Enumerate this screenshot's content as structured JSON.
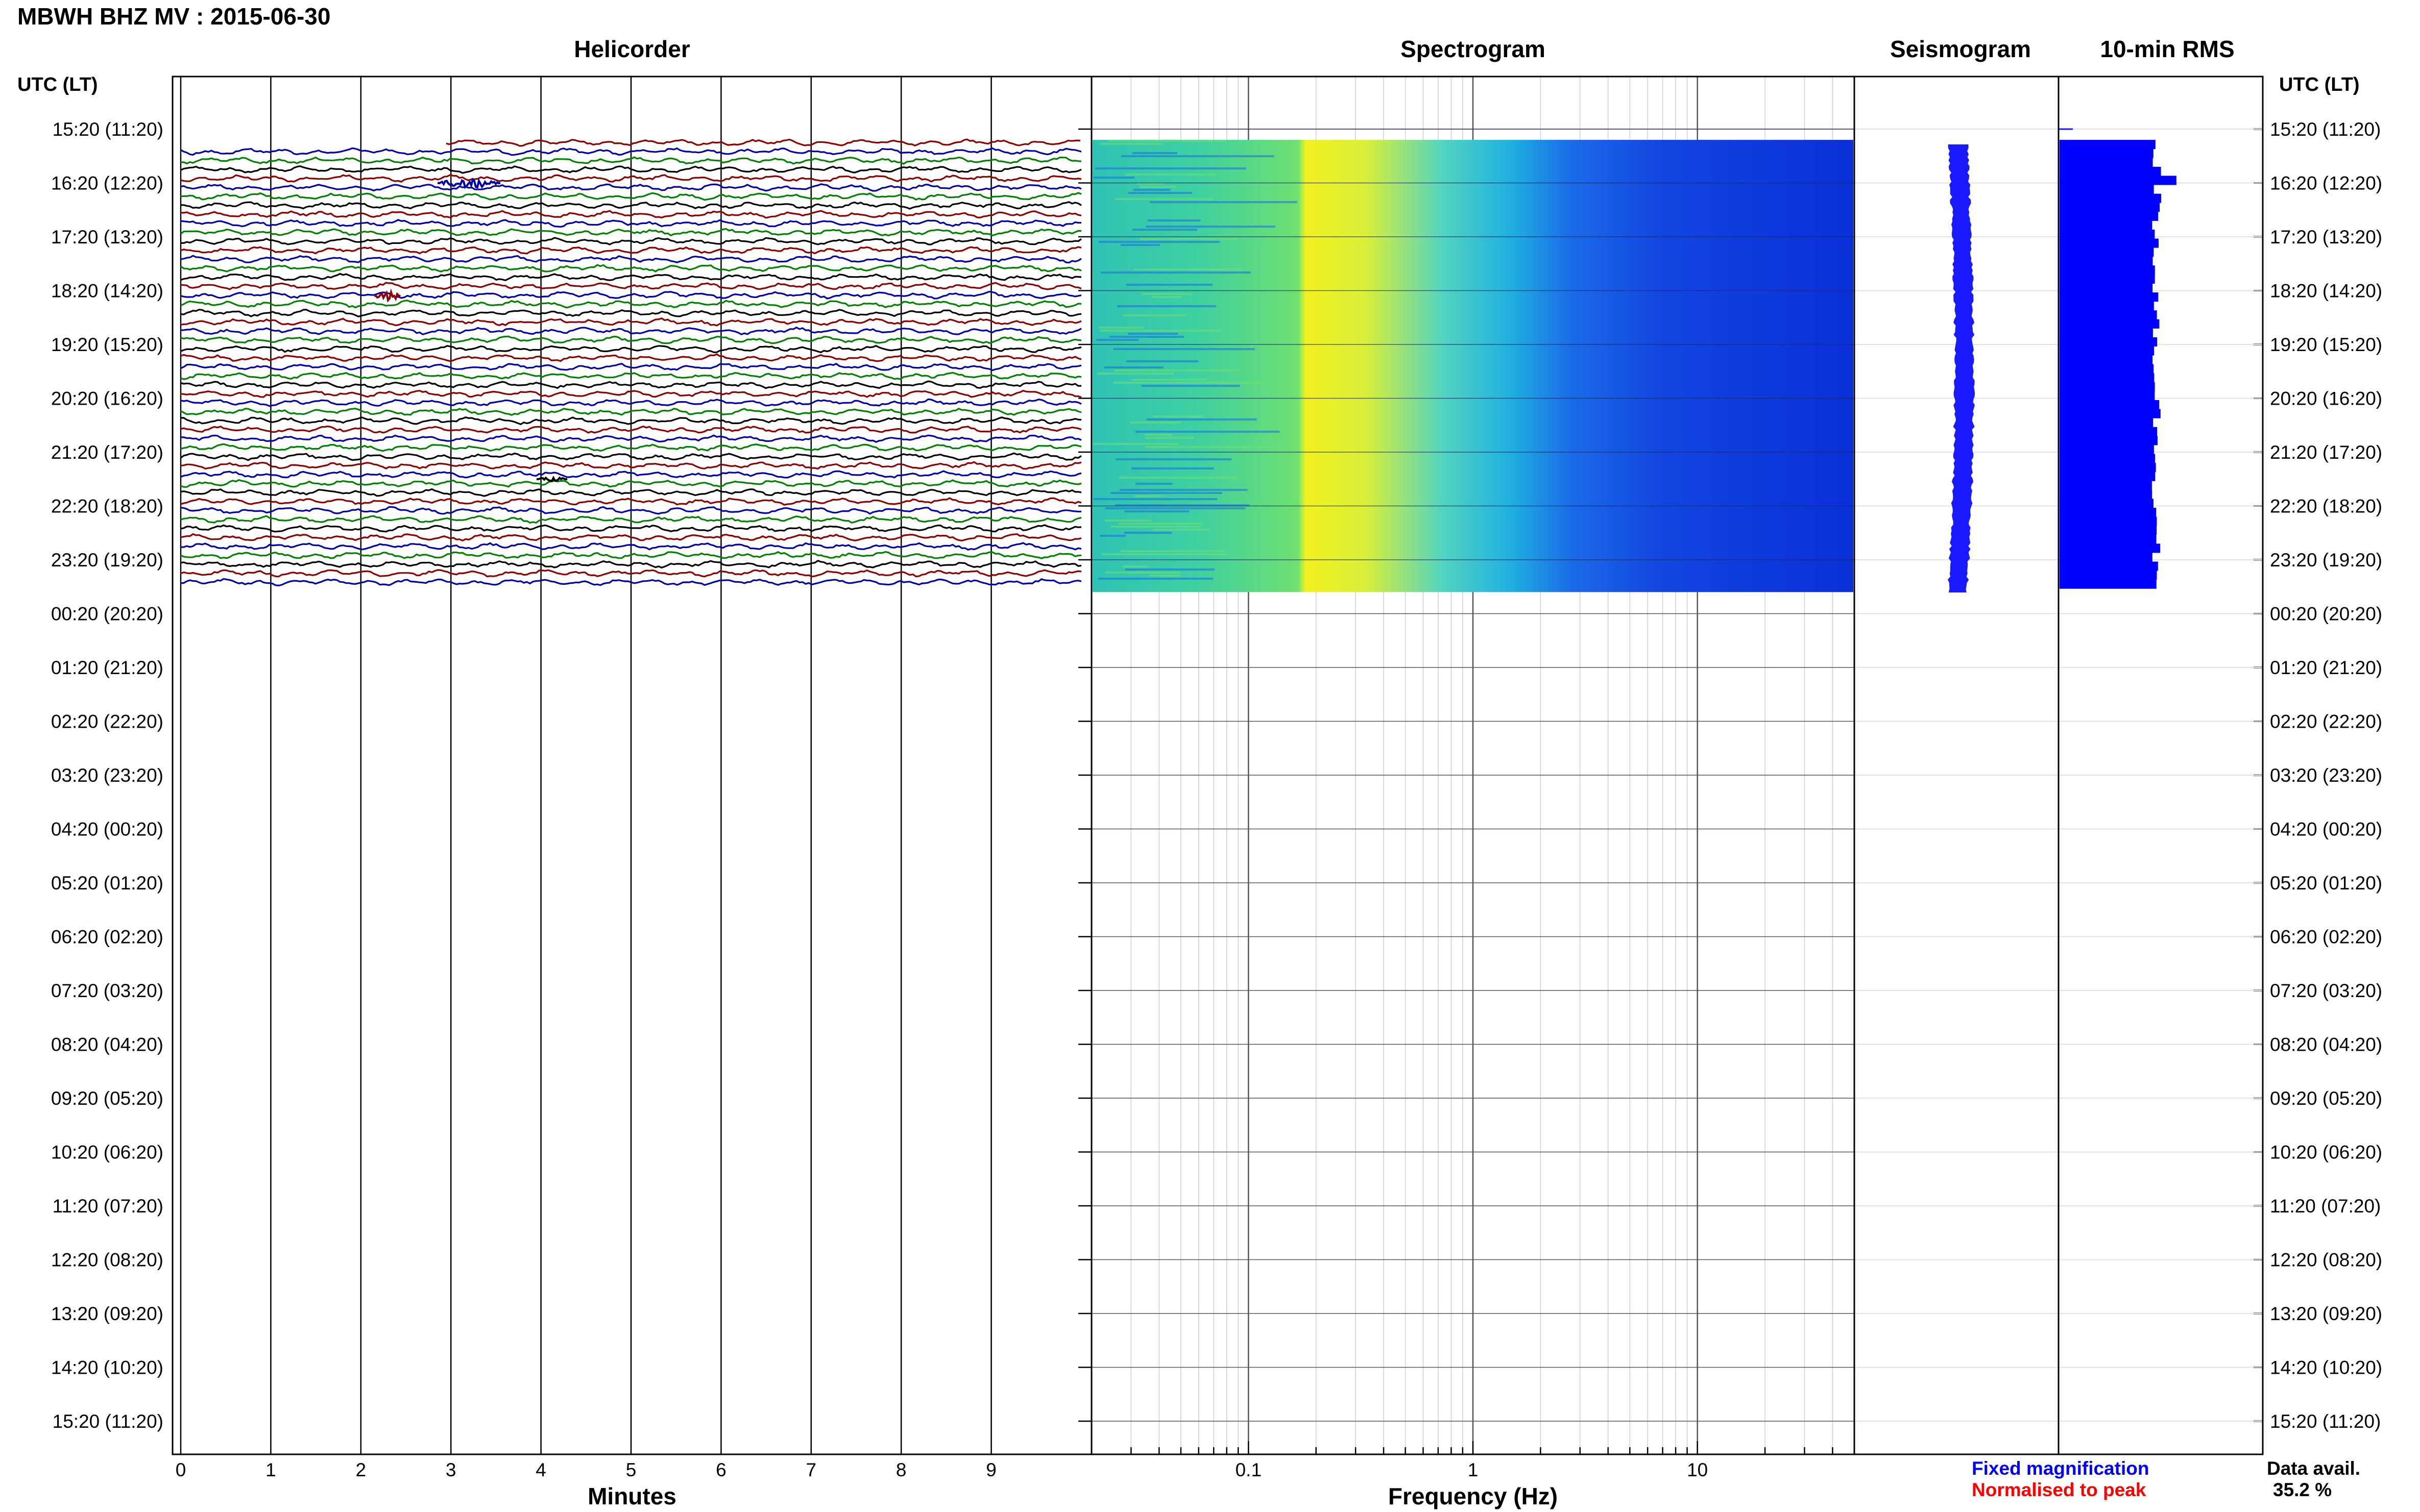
{
  "chart_data": {
    "type": "heatmap",
    "title": "MBWH BHZ MV : 2015-06-30",
    "time_axis": {
      "label": "UTC (LT)",
      "ticks": [
        "15:20 (11:20)",
        "16:20 (12:20)",
        "17:20 (13:20)",
        "18:20 (14:20)",
        "19:20 (15:20)",
        "20:20 (16:20)",
        "21:20 (17:20)",
        "22:20 (18:20)",
        "23:20 (19:20)",
        "00:20 (20:20)",
        "01:20 (21:20)",
        "02:20 (22:20)",
        "03:20 (23:20)",
        "04:20 (00:20)",
        "05:20 (01:20)",
        "06:20 (02:20)",
        "07:20 (03:20)",
        "08:20 (04:20)",
        "09:20 (05:20)",
        "10:20 (06:20)",
        "11:20 (07:20)",
        "12:20 (08:20)",
        "13:20 (09:20)",
        "14:20 (10:20)",
        "15:20 (11:20)"
      ],
      "data_span_hours": [
        0.2,
        8.6
      ]
    },
    "panels": {
      "helicorder": {
        "title": "Helicorder",
        "xlabel": "Minutes",
        "xticks": [
          0,
          1,
          2,
          3,
          4,
          5,
          6,
          7,
          8,
          9
        ],
        "xlim": [
          0,
          10
        ],
        "trace_colors": [
          "#8b0000",
          "#0000aa",
          "#008000",
          "#000000"
        ],
        "traces_per_hour": 6
      },
      "spectrogram": {
        "title": "Spectrogram",
        "xlabel": "Frequency (Hz)",
        "xticks": [
          "0.1",
          "1",
          "10"
        ],
        "xlim": [
          0.02,
          50
        ],
        "xscale": "log"
      },
      "seismogram": {
        "title": "Seismogram"
      },
      "rms": {
        "title": "10-min RMS"
      }
    },
    "legend": {
      "fixed": "Fixed magnification",
      "fixed_color": "#0000ff",
      "normalised": "Normalised to peak",
      "normalised_color": "#ff0000"
    },
    "data_avail": {
      "label": "Data avail.",
      "value": "35.2 %"
    }
  }
}
